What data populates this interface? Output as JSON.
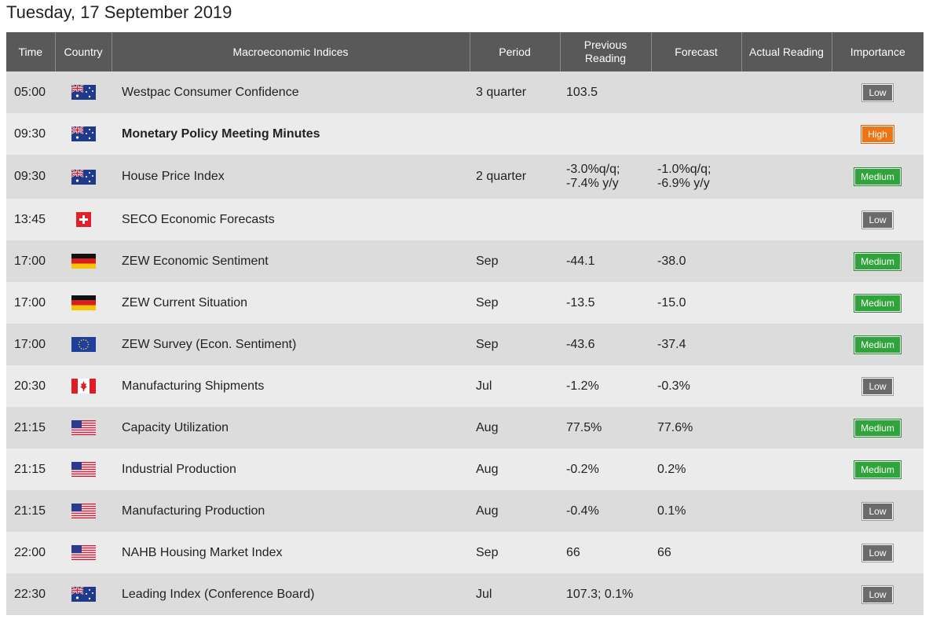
{
  "page": {
    "title": "Tuesday, 17 September 2019"
  },
  "table": {
    "headers": {
      "time": "Time",
      "country": "Country",
      "indices": "Macroeconomic Indices",
      "period": "Period",
      "previous_line1": "Previous",
      "previous_line2": "Reading",
      "forecast": "Forecast",
      "actual": "Actual Reading",
      "importance": "Importance"
    },
    "rows": [
      {
        "time": "05:00",
        "country": "australia-flag-icon",
        "name": "Westpac Consumer Confidence",
        "period": "3 quarter",
        "previous": "103.5",
        "previous2": "",
        "forecast": "",
        "forecast2": "",
        "actual": "",
        "importance": "Low"
      },
      {
        "time": "09:30",
        "country": "australia-flag-icon",
        "name": "Monetary Policy Meeting Minutes",
        "period": "",
        "previous": "",
        "previous2": "",
        "forecast": "",
        "forecast2": "",
        "actual": "",
        "importance": "High"
      },
      {
        "time": "09:30",
        "country": "australia-flag-icon",
        "name": "House Price Index",
        "period": "2 quarter",
        "previous": "-3.0%q/q;",
        "previous2": "-7.4% y/y",
        "forecast": "-1.0%q/q;",
        "forecast2": "-6.9% y/y",
        "actual": "",
        "importance": "Medium"
      },
      {
        "time": "13:45",
        "country": "switzerland-flag-icon",
        "name": "SECO Economic Forecasts",
        "period": "",
        "previous": "",
        "previous2": "",
        "forecast": "",
        "forecast2": "",
        "actual": "",
        "importance": "Low"
      },
      {
        "time": "17:00",
        "country": "germany-flag-icon",
        "name": "ZEW Economic Sentiment",
        "period": "Sep",
        "previous": "-44.1",
        "previous2": "",
        "forecast": "-38.0",
        "forecast2": "",
        "actual": "",
        "importance": "Medium"
      },
      {
        "time": "17:00",
        "country": "germany-flag-icon",
        "name": "ZEW Current Situation",
        "period": "Sep",
        "previous": "-13.5",
        "previous2": "",
        "forecast": "-15.0",
        "forecast2": "",
        "actual": "",
        "importance": "Medium"
      },
      {
        "time": "17:00",
        "country": "eu-flag-icon",
        "name": "ZEW Survey (Econ. Sentiment)",
        "period": "Sep",
        "previous": "-43.6",
        "previous2": "",
        "forecast": "-37.4",
        "forecast2": "",
        "actual": "",
        "importance": "Medium"
      },
      {
        "time": "20:30",
        "country": "canada-flag-icon",
        "name": "Manufacturing Shipments",
        "period": "Jul",
        "previous": "-1.2%",
        "previous2": "",
        "forecast": "-0.3%",
        "forecast2": "",
        "actual": "",
        "importance": "Low"
      },
      {
        "time": "21:15",
        "country": "usa-flag-icon",
        "name": "Capacity Utilization",
        "period": "Aug",
        "previous": "77.5%",
        "previous2": "",
        "forecast": "77.6%",
        "forecast2": "",
        "actual": "",
        "importance": "Medium"
      },
      {
        "time": "21:15",
        "country": "usa-flag-icon",
        "name": "Industrial Production",
        "period": "Aug",
        "previous": "-0.2%",
        "previous2": "",
        "forecast": "0.2%",
        "forecast2": "",
        "actual": "",
        "importance": "Medium"
      },
      {
        "time": "21:15",
        "country": "usa-flag-icon",
        "name": "Manufacturing Production",
        "period": "Aug",
        "previous": "-0.4%",
        "previous2": "",
        "forecast": "0.1%",
        "forecast2": "",
        "actual": "",
        "importance": "Low"
      },
      {
        "time": "22:00",
        "country": "usa-flag-icon",
        "name": "NAHB Housing Market Index",
        "period": "Sep",
        "previous": "66",
        "previous2": "",
        "forecast": "66",
        "forecast2": "",
        "actual": "",
        "importance": "Low"
      },
      {
        "time": "22:30",
        "country": "australia-flag-icon",
        "name": "Leading Index (Conference Board)",
        "period": "Jul",
        "previous": "107.3; 0.1%",
        "previous2": "",
        "forecast": "",
        "forecast2": "",
        "actual": "",
        "importance": "Low"
      }
    ]
  },
  "colors": {
    "header_bg": "#595959",
    "row_odd": "#dcdcdc",
    "row_even": "#ebebeb",
    "low": "#6b6b6b",
    "medium": "#2ea43a",
    "high": "#f07415"
  }
}
